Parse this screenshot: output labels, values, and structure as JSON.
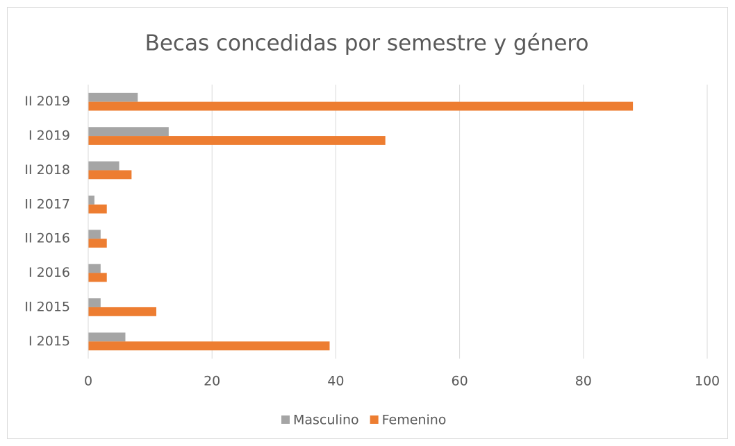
{
  "chart_data": {
    "type": "bar",
    "orientation": "horizontal",
    "title": "Becas concedidas por semestre y género",
    "categories": [
      "I 2015",
      "II 2015",
      "I 2016",
      "II 2016",
      "II 2017",
      "II 2018",
      "I 2019",
      "II 2019"
    ],
    "series": [
      {
        "name": "Masculino",
        "color": "#a5a5a5",
        "values": [
          6,
          2,
          2,
          2,
          1,
          5,
          13,
          8
        ]
      },
      {
        "name": "Femenino",
        "color": "#ed7d31",
        "values": [
          39,
          11,
          3,
          3,
          3,
          7,
          48,
          88
        ]
      }
    ],
    "xlim": [
      0,
      100
    ],
    "xticks": [
      0,
      20,
      40,
      60,
      80,
      100
    ],
    "grid": true,
    "legend": "bottom"
  }
}
